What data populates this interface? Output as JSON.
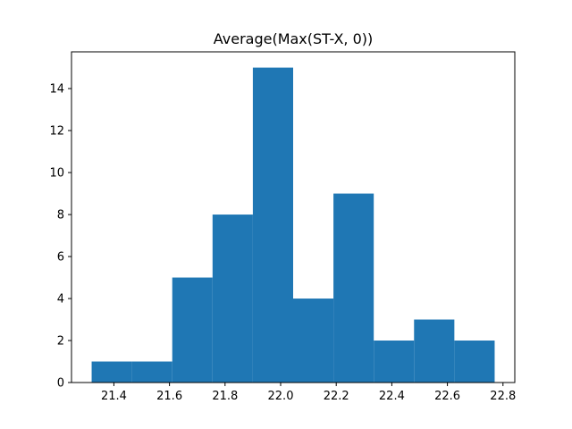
{
  "chart_data": {
    "type": "bar",
    "title": "Average(Max(ST-X, 0))",
    "xlabel": "",
    "ylabel": "",
    "bin_edges": [
      21.32,
      21.465,
      21.61,
      21.755,
      21.9,
      22.045,
      22.19,
      22.335,
      22.48,
      22.625,
      22.77
    ],
    "values": [
      1,
      1,
      5,
      8,
      15,
      4,
      9,
      2,
      3,
      2
    ],
    "xlim": [
      21.2475,
      22.8425
    ],
    "ylim": [
      0,
      15.75
    ],
    "xticks": [
      21.4,
      21.6,
      21.8,
      22.0,
      22.2,
      22.4,
      22.6,
      22.8
    ],
    "xtick_labels": [
      "21.4",
      "21.6",
      "21.8",
      "22.0",
      "22.2",
      "22.4",
      "22.6",
      "22.8"
    ],
    "yticks": [
      0,
      2,
      4,
      6,
      8,
      10,
      12,
      14
    ],
    "ytick_labels": [
      "0",
      "2",
      "4",
      "6",
      "8",
      "10",
      "12",
      "14"
    ],
    "bar_color": "#1f77b4",
    "grid": false,
    "legend": false
  }
}
